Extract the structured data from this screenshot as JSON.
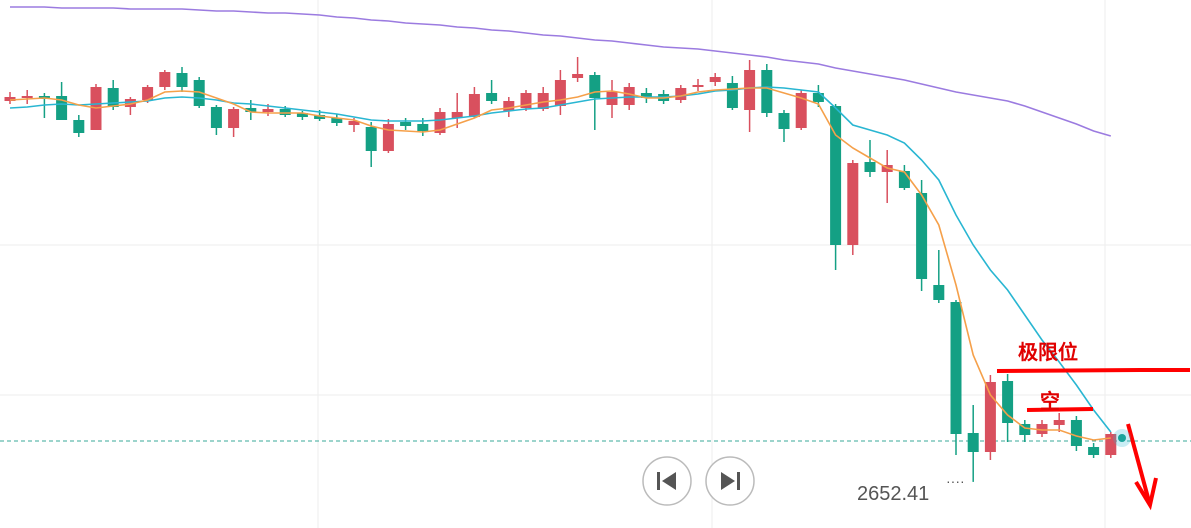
{
  "chart_data": {
    "type": "candlestick",
    "ylim": [
      2647.8,
      2700.6
    ],
    "up_color": "#d9505e",
    "down_color": "#14a084",
    "candles": {
      "open": [
        2690.5,
        2690.8,
        2691.0,
        2691.0,
        2688.6,
        2687.6,
        2691.8,
        2689.9,
        2690.6,
        2691.9,
        2693.3,
        2692.6,
        2689.9,
        2687.8,
        2689.8,
        2689.4,
        2689.7,
        2689.3,
        2689.1,
        2688.8,
        2688.1,
        2687.9,
        2685.5,
        2688.4,
        2688.2,
        2687.3,
        2688.8,
        2688.9,
        2691.3,
        2689.5,
        2689.8,
        2689.7,
        2690.0,
        2692.8,
        2693.1,
        2690.1,
        2690.1,
        2691.3,
        2691.2,
        2690.6,
        2691.9,
        2692.4,
        2692.3,
        2689.6,
        2693.6,
        2689.3,
        2687.8,
        2691.3,
        2690.0,
        2676.1,
        2684.4,
        2683.4,
        2683.5,
        2681.3,
        2672.1,
        2670.4,
        2657.3,
        2655.4,
        2662.5,
        2658.2,
        2657.2,
        2658.1,
        2658.6,
        2655.9,
        2655.1
      ],
      "high": [
        2691.4,
        2691.6,
        2691.3,
        2692.4,
        2689.1,
        2692.2,
        2692.6,
        2690.9,
        2692.1,
        2693.6,
        2693.9,
        2692.9,
        2690.1,
        2689.9,
        2690.6,
        2690.2,
        2690.0,
        2689.5,
        2689.6,
        2689.2,
        2688.8,
        2688.4,
        2688.7,
        2688.8,
        2688.8,
        2689.8,
        2691.3,
        2691.9,
        2692.6,
        2690.9,
        2691.6,
        2691.9,
        2693.6,
        2694.9,
        2693.4,
        2692.6,
        2692.3,
        2691.8,
        2691.6,
        2692.1,
        2692.7,
        2693.3,
        2693.0,
        2694.6,
        2694.2,
        2689.6,
        2691.6,
        2692.1,
        2690.2,
        2684.6,
        2686.6,
        2685.6,
        2684.1,
        2682.6,
        2675.6,
        2670.6,
        2660.1,
        2663.1,
        2663.2,
        2658.6,
        2658.6,
        2659.3,
        2659.0,
        2656.3,
        2657.4
      ],
      "low": [
        2690.2,
        2690.2,
        2688.8,
        2688.6,
        2686.9,
        2687.6,
        2689.6,
        2689.1,
        2690.3,
        2691.6,
        2691.4,
        2689.8,
        2687.1,
        2686.9,
        2688.6,
        2689.0,
        2688.9,
        2688.6,
        2688.5,
        2688.0,
        2687.4,
        2683.9,
        2685.3,
        2687.6,
        2687.0,
        2687.1,
        2687.8,
        2688.8,
        2690.2,
        2688.9,
        2689.5,
        2689.5,
        2689.1,
        2692.4,
        2687.6,
        2688.8,
        2689.6,
        2690.3,
        2690.2,
        2690.3,
        2691.5,
        2692.0,
        2689.6,
        2687.4,
        2688.9,
        2686.4,
        2687.6,
        2689.9,
        2673.6,
        2675.1,
        2682.9,
        2680.3,
        2681.6,
        2671.5,
        2670.3,
        2655.1,
        2652.41,
        2654.6,
        2656.4,
        2656.4,
        2656.9,
        2657.4,
        2655.5,
        2654.8,
        2654.8
      ],
      "close": [
        2690.9,
        2691.0,
        2690.7,
        2688.6,
        2687.3,
        2691.9,
        2689.9,
        2690.7,
        2691.9,
        2693.4,
        2691.9,
        2690.0,
        2687.8,
        2689.7,
        2689.4,
        2689.7,
        2689.1,
        2688.9,
        2688.7,
        2688.3,
        2688.5,
        2685.5,
        2688.2,
        2688.0,
        2687.5,
        2689.4,
        2689.4,
        2691.2,
        2690.5,
        2690.5,
        2691.3,
        2691.3,
        2692.6,
        2693.2,
        2690.8,
        2691.4,
        2691.9,
        2690.8,
        2690.5,
        2691.8,
        2692.1,
        2692.9,
        2689.8,
        2693.6,
        2689.3,
        2687.7,
        2691.3,
        2690.4,
        2676.1,
        2684.3,
        2683.4,
        2684.1,
        2681.8,
        2672.7,
        2670.6,
        2657.2,
        2655.4,
        2662.4,
        2658.3,
        2657.1,
        2658.2,
        2658.6,
        2656.0,
        2655.1,
        2657.2
      ]
    },
    "lines": [
      {
        "color": "#9b7be0",
        "values": [
          2699.9,
          2699.9,
          2699.9,
          2699.8,
          2699.8,
          2699.8,
          2699.8,
          2699.7,
          2699.7,
          2699.7,
          2699.7,
          2699.6,
          2699.5,
          2699.5,
          2699.4,
          2699.3,
          2699.3,
          2699.2,
          2699.1,
          2698.9,
          2698.8,
          2698.6,
          2698.5,
          2698.3,
          2698.2,
          2698.1,
          2697.9,
          2697.8,
          2697.6,
          2697.5,
          2697.3,
          2697.1,
          2697.0,
          2696.8,
          2696.6,
          2696.5,
          2696.3,
          2696.1,
          2695.9,
          2695.8,
          2695.7,
          2695.5,
          2695.3,
          2695.1,
          2694.9,
          2694.6,
          2694.4,
          2694.2,
          2693.8,
          2693.5,
          2693.2,
          2692.9,
          2692.6,
          2692.2,
          2691.8,
          2691.4,
          2691.1,
          2690.8,
          2690.5,
          2690.0,
          2689.4,
          2688.8,
          2688.2,
          2687.5,
          2687.0
        ]
      },
      {
        "color": "#29b6d2",
        "values": [
          2689.8,
          2689.9,
          2690.1,
          2690.2,
          2690.1,
          2690.2,
          2690.3,
          2690.4,
          2690.5,
          2690.8,
          2690.9,
          2690.8,
          2690.6,
          2690.3,
          2690.2,
          2690.0,
          2689.8,
          2689.6,
          2689.4,
          2689.2,
          2688.9,
          2688.6,
          2688.5,
          2688.5,
          2688.5,
          2688.6,
          2688.8,
          2689.0,
          2689.3,
          2689.5,
          2689.7,
          2689.8,
          2690.1,
          2690.4,
          2690.7,
          2690.8,
          2690.9,
          2690.9,
          2690.9,
          2691.0,
          2691.2,
          2691.5,
          2691.6,
          2691.8,
          2691.9,
          2691.8,
          2691.6,
          2691.4,
          2689.8,
          2688.1,
          2687.6,
          2687.1,
          2686.3,
          2684.6,
          2682.6,
          2679.1,
          2676.1,
          2673.6,
          2671.6,
          2669.1,
          2666.6,
          2664.4,
          2662.1,
          2659.6,
          2657.4
        ]
      },
      {
        "color": "#f5a04a",
        "values": [
          2690.6,
          2690.7,
          2690.8,
          2690.6,
          2690.1,
          2689.8,
          2690.0,
          2690.2,
          2690.6,
          2691.4,
          2691.5,
          2691.4,
          2690.8,
          2690.2,
          2689.4,
          2689.3,
          2689.3,
          2689.3,
          2689.0,
          2688.8,
          2688.6,
          2688.0,
          2687.6,
          2687.5,
          2687.4,
          2687.6,
          2688.2,
          2688.8,
          2689.6,
          2689.8,
          2690.1,
          2690.4,
          2690.6,
          2690.9,
          2691.4,
          2691.5,
          2691.2,
          2690.8,
          2690.8,
          2691.0,
          2691.4,
          2691.6,
          2691.7,
          2691.8,
          2691.8,
          2691.3,
          2690.8,
          2690.2,
          2687.1,
          2685.8,
          2684.8,
          2683.8,
          2683.4,
          2681.1,
          2678.1,
          2672.1,
          2665.1,
          2661.1,
          2659.1,
          2657.8,
          2657.6,
          2657.6,
          2657.0,
          2656.6,
          2656.8
        ]
      }
    ],
    "price_line": 2656.5,
    "annotations": [
      "极限位",
      "空"
    ]
  }
}
